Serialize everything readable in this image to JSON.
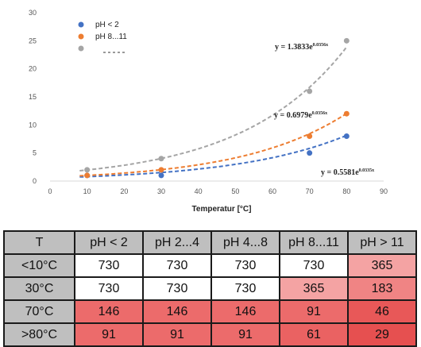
{
  "chart_data": {
    "type": "scatter",
    "xlabel": "Temperatur [°C]",
    "ylabel": "",
    "xlim": [
      0,
      90
    ],
    "ylim": [
      0,
      30
    ],
    "xticks": [
      "0",
      "10",
      "20",
      "30",
      "40",
      "50",
      "60",
      "70",
      "80",
      "90"
    ],
    "yticks": [
      "0",
      "5",
      "10",
      "15",
      "20",
      "25",
      "30"
    ],
    "grid": false,
    "legend_position": "top-left",
    "series": [
      {
        "name": "pH < 2",
        "color": "#4472c4",
        "x": [
          10,
          30,
          70,
          80
        ],
        "y": [
          1,
          1,
          5,
          8
        ],
        "trend_a": 0.5581,
        "trend_b": 0.0335,
        "equation": "y = 0.5581e",
        "exponent": "0.0335x"
      },
      {
        "name": "pH 8...11",
        "color": "#ed7d31",
        "x": [
          10,
          30,
          70,
          80
        ],
        "y": [
          1,
          2,
          8,
          12
        ],
        "trend_a": 0.6979,
        "trend_b": 0.0356,
        "equation": "y = 0.6979e",
        "exponent": "0.0356x"
      },
      {
        "name": "",
        "color": "#a5a5a5",
        "x": [
          10,
          30,
          70,
          80
        ],
        "y": [
          2,
          4,
          16,
          25
        ],
        "trend_a": 1.3833,
        "trend_b": 0.0356,
        "equation": "y = 1.3833e",
        "exponent": "0.0356x"
      }
    ]
  },
  "table": {
    "headers": [
      "T",
      "pH < 2",
      "pH 2...4",
      "pH 4...8",
      "pH 8...11",
      "pH > 11"
    ],
    "rows": [
      {
        "label": "<10°C",
        "values": [
          "730",
          "730",
          "730",
          "730",
          "365"
        ]
      },
      {
        "label": "30°C",
        "values": [
          "730",
          "730",
          "730",
          "365",
          "183"
        ]
      },
      {
        "label": "70°C",
        "values": [
          "146",
          "146",
          "146",
          "91",
          "46"
        ]
      },
      {
        "label": ">80°C",
        "values": [
          "91",
          "91",
          "91",
          "61",
          "29"
        ]
      }
    ],
    "colors": {
      "730": "#ffffff",
      "365": "#f4a3a3",
      "183": "#f08484",
      "146": "#ec6b6b",
      "91": "#ec6b6b",
      "61": "#ea6262",
      "46": "#e85858",
      "29": "#e65050"
    }
  }
}
